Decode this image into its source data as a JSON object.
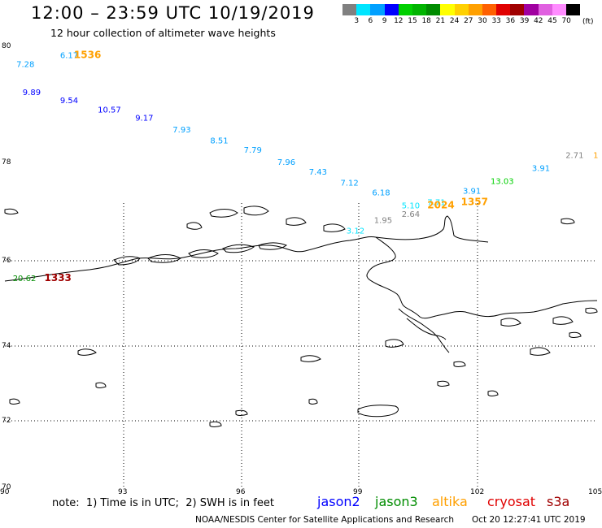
{
  "header": {
    "title": "12:00 – 23:59 UTC 10/19/2019",
    "subtitle": "12 hour collection of altimeter wave heights"
  },
  "color_scale": {
    "unit": "(ft)",
    "ticks": [
      "3",
      "6",
      "9",
      "12",
      "15",
      "18",
      "21",
      "24",
      "27",
      "30",
      "33",
      "36",
      "39",
      "42",
      "45",
      "70"
    ],
    "colors": [
      "#808080",
      "#00e5ff",
      "#00a0ff",
      "#0000ff",
      "#00d000",
      "#00b400",
      "#008c00",
      "#ffff00",
      "#ffd000",
      "#ffa000",
      "#ff6000",
      "#e00000",
      "#a00000",
      "#a000a0",
      "#e060e0",
      "#ff8cff",
      "#000000"
    ]
  },
  "axes": {
    "lon_labels": [
      "90",
      "93",
      "96",
      "99",
      "102",
      "105"
    ],
    "lat_labels": [
      "80",
      "78",
      "76",
      "74",
      "72",
      "70"
    ]
  },
  "observations": [
    {
      "text": "7.28",
      "lon": 90.29,
      "lat": 79.64,
      "color": "#00a0ff"
    },
    {
      "text": "6.17",
      "lon": 91.4,
      "lat": 79.8,
      "color": "#00a0ff"
    },
    {
      "text": "1536",
      "lon": 91.75,
      "lat": 79.8,
      "color": "#ffa000"
    },
    {
      "text": "9.89",
      "lon": 90.45,
      "lat": 79.16,
      "color": "#0000ff"
    },
    {
      "text": "9.54",
      "lon": 91.4,
      "lat": 79.02,
      "color": "#0000ff"
    },
    {
      "text": "10.57",
      "lon": 92.35,
      "lat": 78.86,
      "color": "#0000ff"
    },
    {
      "text": "9.17",
      "lon": 93.3,
      "lat": 78.72,
      "color": "#0000ff"
    },
    {
      "text": "7.93",
      "lon": 94.25,
      "lat": 78.52,
      "color": "#00a0ff"
    },
    {
      "text": "8.51",
      "lon": 95.2,
      "lat": 78.33,
      "color": "#00a0ff"
    },
    {
      "text": "7.79",
      "lon": 96.05,
      "lat": 78.17,
      "color": "#00a0ff"
    },
    {
      "text": "7.96",
      "lon": 96.9,
      "lat": 77.95,
      "color": "#00a0ff"
    },
    {
      "text": "7.43",
      "lon": 97.7,
      "lat": 77.75,
      "color": "#00a0ff"
    },
    {
      "text": "7.12",
      "lon": 98.5,
      "lat": 77.53,
      "color": "#00a0ff"
    },
    {
      "text": "6.18",
      "lon": 99.3,
      "lat": 77.33,
      "color": "#00a0ff"
    },
    {
      "text": "5.10",
      "lon": 100.05,
      "lat": 77.07,
      "color": "#00e5ff"
    },
    {
      "text": "2.64",
      "lon": 100.05,
      "lat": 76.89,
      "color": "#808080"
    },
    {
      "text": "7.71",
      "lon": 100.7,
      "lat": 77.13,
      "color": "#00e5ff"
    },
    {
      "text": "2024",
      "lon": 100.7,
      "lat": 77.07,
      "color": "#ffa000"
    },
    {
      "text": "1357",
      "lon": 101.55,
      "lat": 77.13,
      "color": "#ffa000"
    },
    {
      "text": "3.91",
      "lon": 101.6,
      "lat": 77.36,
      "color": "#00a0ff"
    },
    {
      "text": "13.03",
      "lon": 102.3,
      "lat": 77.56,
      "color": "#00d000"
    },
    {
      "text": "3.91",
      "lon": 103.35,
      "lat": 77.83,
      "color": "#00a0ff"
    },
    {
      "text": "2.71",
      "lon": 104.2,
      "lat": 78.08,
      "color": "#808080"
    },
    {
      "text": "1",
      "lon": 104.9,
      "lat": 78.08,
      "color": "#ffa000"
    },
    {
      "text": "1.95",
      "lon": 99.35,
      "lat": 76.77,
      "color": "#808080"
    },
    {
      "text": "3.12",
      "lon": 98.65,
      "lat": 76.55,
      "color": "#00e5ff"
    },
    {
      "text": "20.62",
      "lon": 90.2,
      "lat": 75.52,
      "color": "#008c00"
    },
    {
      "text": "1333",
      "lon": 91.0,
      "lat": 75.52,
      "color": "#a00000"
    }
  ],
  "note": "note:  1) Time is in UTC;  2) SWH is in feet",
  "legend": [
    {
      "name": "jason2",
      "color": "#0000ff"
    },
    {
      "name": "jason3",
      "color": "#008c00"
    },
    {
      "name": "altika",
      "color": "#ffa000"
    },
    {
      "name": "cryosat",
      "color": "#e00000"
    },
    {
      "name": "s3a",
      "color": "#a00000"
    }
  ],
  "credit": "NOAA/NESDIS Center for Satellite Applications and Research",
  "generated": "Oct 20 12:27:41 UTC 2019"
}
